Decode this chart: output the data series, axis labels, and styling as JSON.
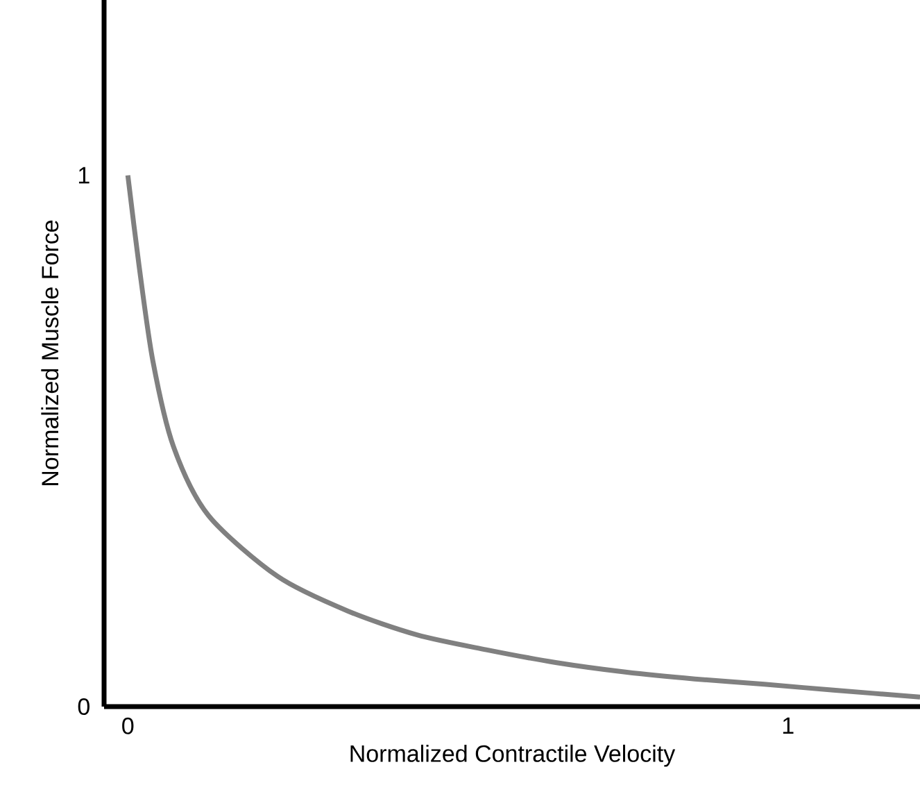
{
  "chart_data": {
    "type": "line",
    "xlabel": "Normalized Contractile Velocity",
    "ylabel": "Normalized Muscle Force",
    "x": [
      0,
      0.017,
      0.038,
      0.069,
      0.122,
      0.227,
      0.333,
      0.438,
      0.543,
      0.648,
      0.754,
      0.859,
      0.964,
      1.069,
      1.2
    ],
    "values": [
      1.0,
      0.83,
      0.65,
      0.49,
      0.36,
      0.245,
      0.18,
      0.135,
      0.107,
      0.083,
      0.065,
      0.052,
      0.042,
      0.031,
      0.018
    ],
    "color": "#808080",
    "marker": "none",
    "line_style": "solid",
    "xlim": [
      -0.036,
      1.2
    ],
    "ylim": [
      0,
      1.33
    ],
    "xticks": [
      0,
      1
    ],
    "yticks": [
      0,
      1
    ]
  }
}
